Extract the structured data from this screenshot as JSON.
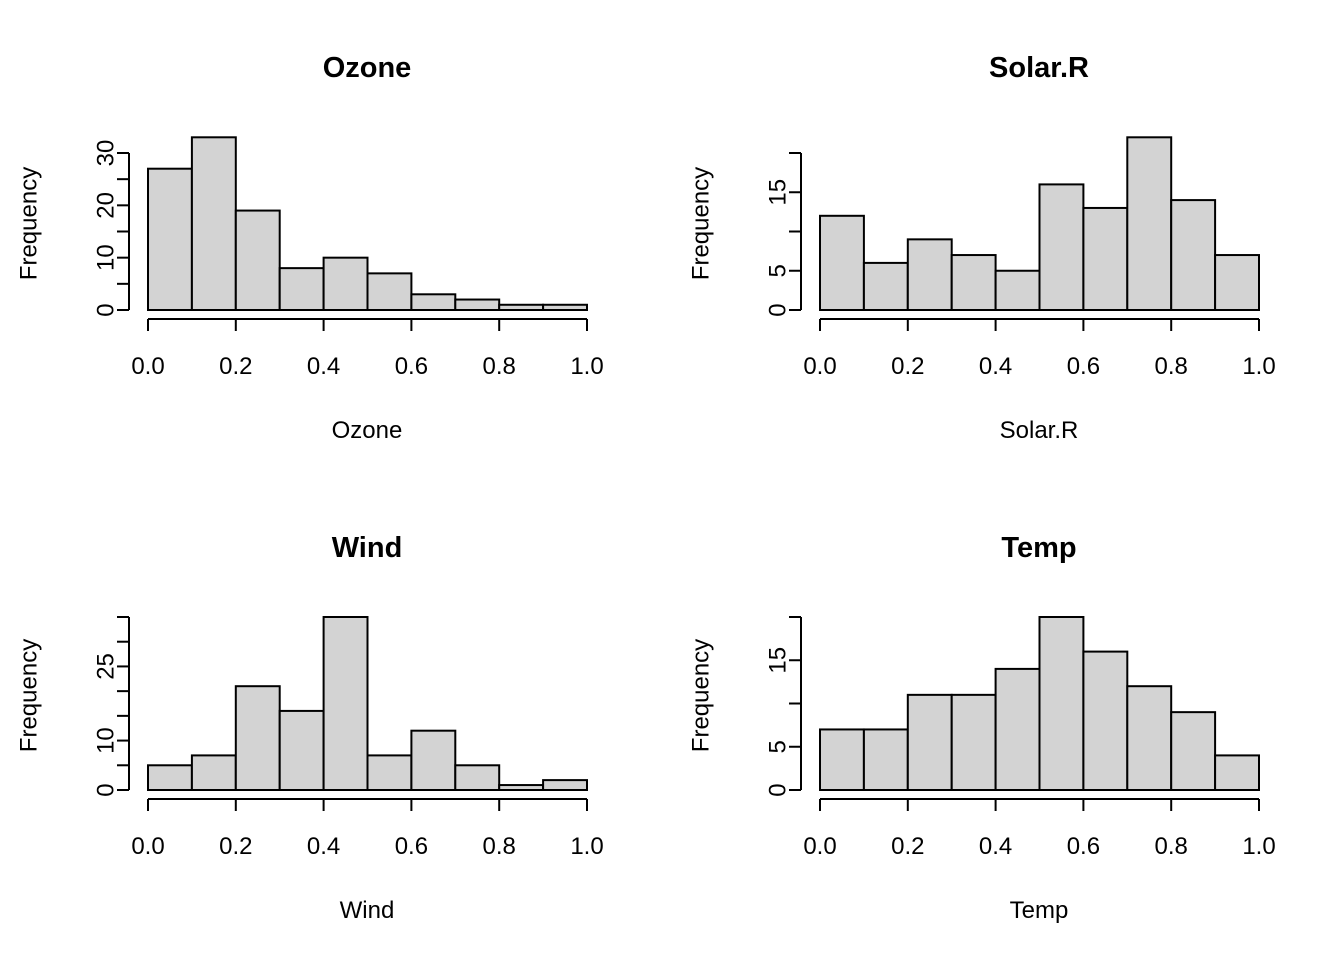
{
  "chart_data": [
    {
      "type": "bar",
      "title": "Ozone",
      "xlabel": "Ozone",
      "ylabel": "Frequency",
      "bin_edges": [
        0.0,
        0.1,
        0.2,
        0.3,
        0.4,
        0.5,
        0.6,
        0.7,
        0.8,
        0.9,
        1.0
      ],
      "values": [
        27,
        33,
        19,
        8,
        10,
        7,
        3,
        2,
        1,
        1
      ],
      "xlim": [
        0.0,
        1.0
      ],
      "ylim": [
        0,
        30
      ],
      "x_ticks": [
        "0.0",
        "0.2",
        "0.4",
        "0.6",
        "0.8",
        "1.0"
      ],
      "y_tick_values": [
        0,
        5,
        10,
        15,
        20,
        25,
        30
      ],
      "y_tick_labels": [
        "0",
        "",
        "10",
        "",
        "20",
        "",
        "30"
      ]
    },
    {
      "type": "bar",
      "title": "Solar.R",
      "xlabel": "Solar.R",
      "ylabel": "Frequency",
      "bin_edges": [
        0.0,
        0.1,
        0.2,
        0.3,
        0.4,
        0.5,
        0.6,
        0.7,
        0.8,
        0.9,
        1.0
      ],
      "values": [
        12,
        6,
        9,
        7,
        5,
        16,
        13,
        22,
        14,
        7
      ],
      "xlim": [
        0.0,
        1.0
      ],
      "ylim": [
        0,
        20
      ],
      "x_ticks": [
        "0.0",
        "0.2",
        "0.4",
        "0.6",
        "0.8",
        "1.0"
      ],
      "y_tick_values": [
        0,
        5,
        10,
        15,
        20
      ],
      "y_tick_labels": [
        "0",
        "5",
        "",
        "15",
        ""
      ]
    },
    {
      "type": "bar",
      "title": "Wind",
      "xlabel": "Wind",
      "ylabel": "Frequency",
      "bin_edges": [
        0.0,
        0.1,
        0.2,
        0.3,
        0.4,
        0.5,
        0.6,
        0.7,
        0.8,
        0.9,
        1.0
      ],
      "values": [
        5,
        7,
        21,
        16,
        35,
        7,
        12,
        5,
        1,
        2
      ],
      "xlim": [
        0.0,
        1.0
      ],
      "ylim": [
        0,
        35
      ],
      "x_ticks": [
        "0.0",
        "0.2",
        "0.4",
        "0.6",
        "0.8",
        "1.0"
      ],
      "y_tick_values": [
        0,
        5,
        10,
        15,
        20,
        25,
        30,
        35
      ],
      "y_tick_labels": [
        "0",
        "",
        "10",
        "",
        "",
        "25",
        "",
        ""
      ]
    },
    {
      "type": "bar",
      "title": "Temp",
      "xlabel": "Temp",
      "ylabel": "Frequency",
      "bin_edges": [
        0.0,
        0.1,
        0.2,
        0.3,
        0.4,
        0.5,
        0.6,
        0.7,
        0.8,
        0.9,
        1.0
      ],
      "values": [
        7,
        7,
        11,
        11,
        14,
        20,
        16,
        12,
        9,
        4
      ],
      "xlim": [
        0.0,
        1.0
      ],
      "ylim": [
        0,
        20
      ],
      "x_ticks": [
        "0.0",
        "0.2",
        "0.4",
        "0.6",
        "0.8",
        "1.0"
      ],
      "y_tick_values": [
        0,
        5,
        10,
        15,
        20
      ],
      "y_tick_labels": [
        "0",
        "5",
        "",
        "15",
        ""
      ]
    }
  ]
}
